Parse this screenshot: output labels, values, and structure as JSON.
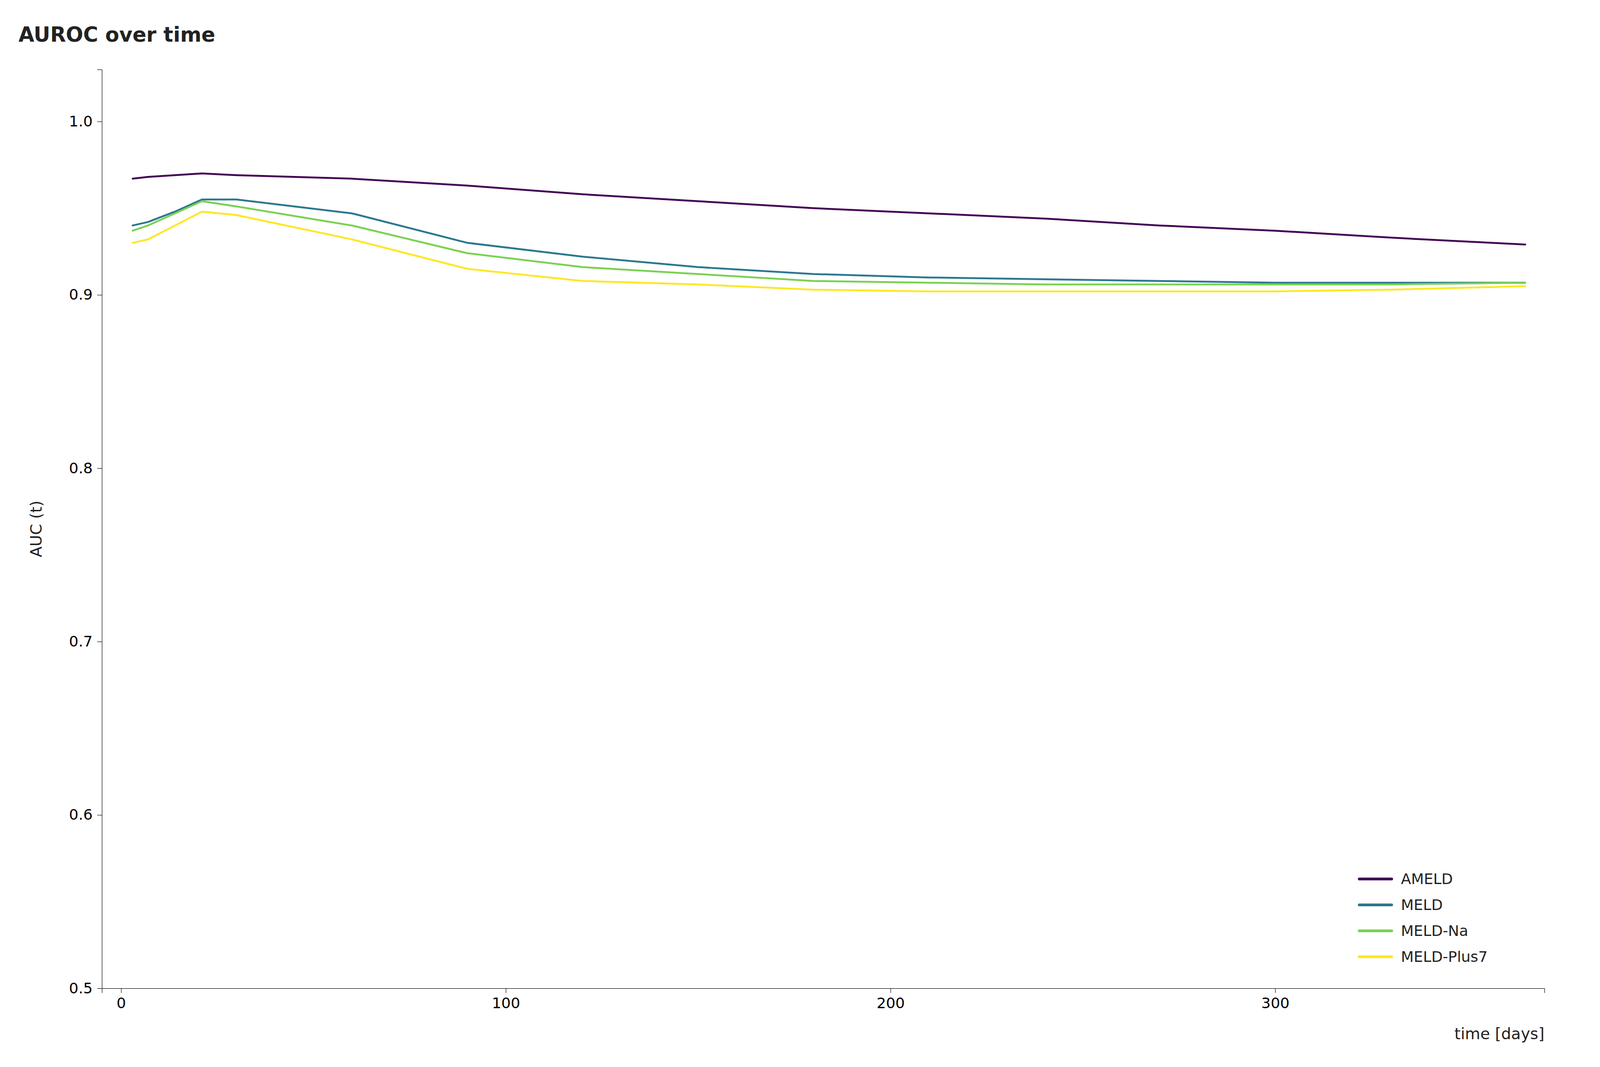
{
  "chart_data": {
    "type": "line",
    "title": "AUROC over time",
    "xlabel": "time [days]",
    "ylabel": "AUC (t)",
    "x": [
      3,
      7,
      14,
      21,
      30,
      60,
      90,
      120,
      150,
      180,
      210,
      240,
      270,
      300,
      330,
      365
    ],
    "series": [
      {
        "name": "AMELD",
        "color": "#440154",
        "values": [
          0.967,
          0.968,
          0.969,
          0.97,
          0.969,
          0.967,
          0.963,
          0.958,
          0.954,
          0.95,
          0.947,
          0.944,
          0.94,
          0.937,
          0.933,
          0.929
        ]
      },
      {
        "name": "MELD",
        "color": "#2a788e",
        "values": [
          0.94,
          0.942,
          0.948,
          0.955,
          0.955,
          0.947,
          0.93,
          0.922,
          0.916,
          0.912,
          0.91,
          0.909,
          0.908,
          0.907,
          0.907,
          0.907
        ]
      },
      {
        "name": "MELD-Na",
        "color": "#7ad151",
        "values": [
          0.937,
          0.94,
          0.947,
          0.954,
          0.951,
          0.94,
          0.924,
          0.916,
          0.912,
          0.908,
          0.907,
          0.906,
          0.906,
          0.906,
          0.906,
          0.907
        ]
      },
      {
        "name": "MELD-Plus7",
        "color": "#fde725",
        "values": [
          0.93,
          0.932,
          0.94,
          0.948,
          0.946,
          0.932,
          0.915,
          0.908,
          0.906,
          0.903,
          0.902,
          0.902,
          0.902,
          0.902,
          0.903,
          0.905
        ]
      }
    ],
    "xlim": [
      -5,
      370
    ],
    "xticks": [
      0,
      100,
      200,
      300
    ],
    "ylim": [
      0.5,
      1.03
    ],
    "yticks": [
      0.5,
      0.6,
      0.7,
      0.8,
      0.9,
      {
        "value": 1.0,
        "label": "1.0"
      }
    ],
    "grid": false,
    "legend": "lower right"
  }
}
